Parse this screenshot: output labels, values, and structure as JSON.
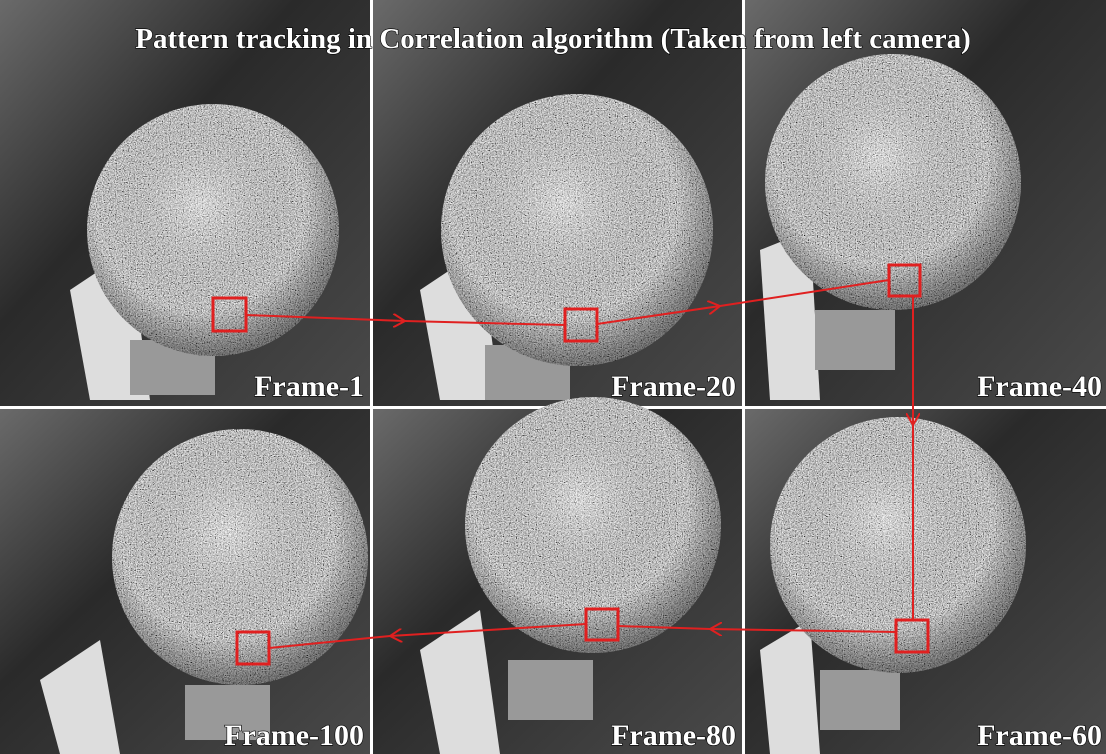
{
  "title": "Pattern tracking in Correlation algorithm (Taken from left camera)",
  "frames": [
    {
      "label": "Frame-1"
    },
    {
      "label": "Frame-20"
    },
    {
      "label": "Frame-40"
    },
    {
      "label": "Frame-100"
    },
    {
      "label": "Frame-80"
    },
    {
      "label": "Frame-60"
    }
  ]
}
